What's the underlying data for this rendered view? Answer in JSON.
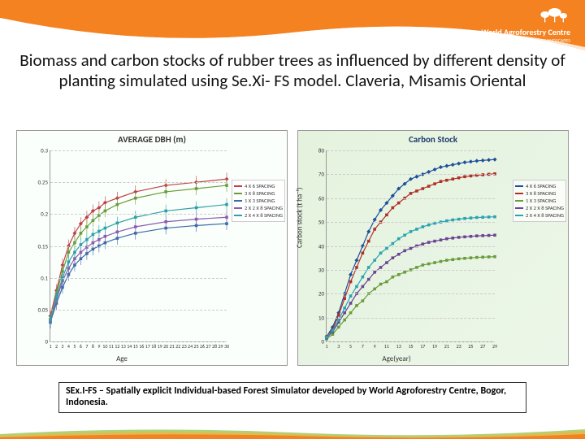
{
  "header": {
    "org_name": "World Agroforestry Centre",
    "org_tagline": "TRANSFORMING LIVES AND LANDSCAPES",
    "swoosh_color": "#f58220",
    "swoosh_accent": "#ffffff",
    "tree_icon_color": "#ffffff"
  },
  "title": {
    "text": "Biomass and carbon stocks of rubber trees as influenced by different density of planting simulated using Se.Xi- FS model. Claveria, Misamis Oriental",
    "fontsize": 21,
    "color": "#111111"
  },
  "left_chart": {
    "type": "line-errorbar",
    "title": "AVERAGE DBH (m)",
    "title_color": "#555555",
    "xlabel": "Age",
    "ylabel": "",
    "xlim": [
      1,
      30
    ],
    "ylim": [
      0,
      0.3
    ],
    "xticks": [
      1,
      2,
      3,
      4,
      5,
      6,
      7,
      8,
      9,
      10,
      11,
      12,
      13,
      14,
      15,
      16,
      17,
      18,
      19,
      20,
      21,
      22,
      23,
      24,
      25,
      26,
      27,
      28,
      29,
      30
    ],
    "yticks": [
      0,
      0.05,
      0.1,
      0.15,
      0.2,
      0.25,
      0.3
    ],
    "background_color": "#ffffff",
    "grid_color": "#d9d9d9",
    "series": [
      {
        "name": "4 X 6 SPACING",
        "color": "#c04048",
        "marker": "diamond",
        "x": [
          1,
          2,
          3,
          4,
          5,
          6,
          7,
          8,
          9,
          10,
          12,
          15,
          20,
          25,
          30
        ],
        "y": [
          0.04,
          0.08,
          0.12,
          0.15,
          0.17,
          0.185,
          0.195,
          0.205,
          0.21,
          0.218,
          0.225,
          0.235,
          0.245,
          0.25,
          0.255
        ]
      },
      {
        "name": "3 X 8 SPACING",
        "color": "#6a9c3c",
        "marker": "square",
        "x": [
          1,
          2,
          3,
          4,
          5,
          6,
          7,
          8,
          9,
          10,
          12,
          15,
          20,
          25,
          30
        ],
        "y": [
          0.035,
          0.075,
          0.11,
          0.14,
          0.155,
          0.17,
          0.18,
          0.19,
          0.198,
          0.205,
          0.215,
          0.225,
          0.235,
          0.24,
          0.245
        ]
      },
      {
        "name": "1 X 3 SPACING",
        "color": "#3a6aa8",
        "marker": "triangle",
        "x": [
          1,
          2,
          3,
          4,
          5,
          6,
          7,
          8,
          9,
          10,
          12,
          15,
          20,
          25,
          30
        ],
        "y": [
          0.03,
          0.06,
          0.085,
          0.105,
          0.12,
          0.13,
          0.138,
          0.145,
          0.15,
          0.155,
          0.162,
          0.17,
          0.178,
          0.182,
          0.185
        ]
      },
      {
        "name": "2 X 2 X 8 SPACING",
        "color": "#8a5db0",
        "marker": "x",
        "x": [
          1,
          2,
          3,
          4,
          5,
          6,
          7,
          8,
          9,
          10,
          12,
          15,
          20,
          25,
          30
        ],
        "y": [
          0.032,
          0.065,
          0.095,
          0.115,
          0.13,
          0.14,
          0.148,
          0.155,
          0.16,
          0.165,
          0.172,
          0.18,
          0.188,
          0.192,
          0.195
        ]
      },
      {
        "name": "2 X 4 X 8 SPACING",
        "color": "#2fa0a8",
        "marker": "star",
        "x": [
          1,
          2,
          3,
          4,
          5,
          6,
          7,
          8,
          9,
          10,
          12,
          15,
          20,
          25,
          30
        ],
        "y": [
          0.034,
          0.07,
          0.1,
          0.125,
          0.14,
          0.152,
          0.16,
          0.168,
          0.173,
          0.178,
          0.186,
          0.195,
          0.205,
          0.21,
          0.215
        ]
      }
    ],
    "errorbar_half": 0.01
  },
  "right_chart": {
    "type": "line-marker",
    "title": "Carbon Stock",
    "title_color": "#1f3b6e",
    "xlabel": "Age(year)",
    "ylabel": "Carbon stock (t ha⁻¹)",
    "xlim": [
      1,
      29
    ],
    "ylim": [
      0,
      80
    ],
    "xticks": [
      1,
      3,
      5,
      7,
      9,
      11,
      13,
      15,
      17,
      19,
      21,
      23,
      25,
      27,
      29
    ],
    "yticks": [
      0,
      10,
      20,
      30,
      40,
      50,
      60,
      70,
      80
    ],
    "background_color": "#e9f0e4",
    "grid_color": "#cfd8cc",
    "series": [
      {
        "name": "4 X 6 SPACING",
        "color": "#1f4e9c",
        "marker": "diamond",
        "x": [
          1,
          2,
          3,
          4,
          5,
          6,
          7,
          8,
          9,
          10,
          11,
          12,
          13,
          14,
          15,
          16,
          17,
          18,
          19,
          20,
          21,
          22,
          23,
          24,
          25,
          26,
          27,
          28,
          29
        ],
        "y": [
          2,
          6,
          12,
          20,
          28,
          34,
          40,
          46,
          51,
          55,
          58,
          61,
          64,
          66,
          68,
          69,
          70,
          71,
          72,
          73,
          73.5,
          74,
          74.5,
          75,
          75.3,
          75.6,
          75.8,
          76,
          76.2
        ]
      },
      {
        "name": "3 X 8 SPACING",
        "color": "#b03028",
        "marker": "square",
        "x": [
          1,
          2,
          3,
          4,
          5,
          6,
          7,
          8,
          9,
          10,
          11,
          12,
          13,
          14,
          15,
          16,
          17,
          18,
          19,
          20,
          21,
          22,
          23,
          24,
          25,
          26,
          27,
          28,
          29
        ],
        "y": [
          2,
          5,
          11,
          18,
          25,
          31,
          37,
          42,
          47,
          50,
          53,
          56,
          58,
          60,
          62,
          63,
          64,
          65,
          66,
          67,
          67.5,
          68,
          68.5,
          69,
          69.3,
          69.6,
          69.8,
          70,
          70.2
        ]
      },
      {
        "name": "1 X 3 SPACING",
        "color": "#6a9c3c",
        "marker": "triangle",
        "x": [
          1,
          2,
          3,
          4,
          5,
          6,
          7,
          8,
          9,
          10,
          11,
          12,
          13,
          14,
          15,
          16,
          17,
          18,
          19,
          20,
          21,
          22,
          23,
          24,
          25,
          26,
          27,
          28,
          29
        ],
        "y": [
          1,
          3,
          6,
          9,
          12,
          15,
          17,
          20,
          22,
          24,
          25,
          27,
          28,
          29,
          30,
          31,
          32,
          32.5,
          33,
          33.5,
          34,
          34.3,
          34.6,
          34.8,
          35,
          35.2,
          35.3,
          35.4,
          35.5
        ]
      },
      {
        "name": "2 X 2 X 8 SPACING",
        "color": "#6a4593",
        "marker": "x",
        "x": [
          1,
          2,
          3,
          4,
          5,
          6,
          7,
          8,
          9,
          10,
          11,
          12,
          13,
          14,
          15,
          16,
          17,
          18,
          19,
          20,
          21,
          22,
          23,
          24,
          25,
          26,
          27,
          28,
          29
        ],
        "y": [
          1.5,
          4,
          8,
          12,
          16,
          20,
          23,
          26,
          29,
          31,
          33,
          35,
          36.5,
          38,
          39,
          40,
          40.8,
          41.5,
          42,
          42.5,
          43,
          43.3,
          43.6,
          43.8,
          44,
          44.2,
          44.3,
          44.4,
          44.5
        ]
      },
      {
        "name": "2 X 4 X 8 SPACING",
        "color": "#2aa3b2",
        "marker": "star",
        "x": [
          1,
          2,
          3,
          4,
          5,
          6,
          7,
          8,
          9,
          10,
          11,
          12,
          13,
          14,
          15,
          16,
          17,
          18,
          19,
          20,
          21,
          22,
          23,
          24,
          25,
          26,
          27,
          28,
          29
        ],
        "y": [
          1.8,
          4.5,
          9,
          14,
          19,
          23,
          27,
          31,
          34,
          37,
          39,
          41,
          43,
          44.5,
          46,
          47,
          48,
          48.8,
          49.5,
          50,
          50.5,
          50.9,
          51.2,
          51.5,
          51.7,
          51.9,
          52,
          52.1,
          52.2
        ]
      }
    ]
  },
  "footnote": {
    "text": "SEx.I-FS – Spatially explicit Individual-based Forest Simulator developed by World Agroforestry Centre, Bogor, Indonesia.",
    "fontsize": 12,
    "border_color": "#333333"
  },
  "footer": {
    "band_colors": [
      "#f5b042",
      "#8bbf3e",
      "#f58220"
    ]
  }
}
